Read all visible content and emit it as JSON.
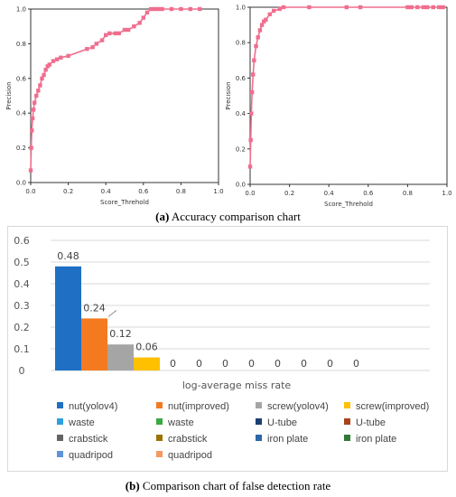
{
  "captions": {
    "a_letter": "(a)",
    "a_text": "Accuracy comparison chart",
    "b_letter": "(b)",
    "b_text": "Comparison chart of false detection rate"
  },
  "chart_data": [
    {
      "type": "line",
      "xlabel": "Score_Threhold",
      "ylabel": "Precision",
      "xlim": [
        0.0,
        1.0
      ],
      "ylim": [
        0.0,
        1.0
      ],
      "xticks": [
        "0.0",
        "0.2",
        "0.4",
        "0.6",
        "0.8",
        "1.0"
      ],
      "yticks": [
        "0.0",
        "0.2",
        "0.4",
        "0.6",
        "0.8",
        "1.0"
      ],
      "color": "#f06e8e",
      "x": [
        0.0,
        0.003,
        0.006,
        0.01,
        0.015,
        0.02,
        0.03,
        0.04,
        0.05,
        0.06,
        0.07,
        0.08,
        0.09,
        0.1,
        0.12,
        0.14,
        0.16,
        0.2,
        0.3,
        0.33,
        0.35,
        0.38,
        0.4,
        0.42,
        0.45,
        0.47,
        0.5,
        0.52,
        0.55,
        0.58,
        0.6,
        0.62,
        0.64,
        0.66,
        0.68,
        0.7,
        0.75,
        0.8,
        0.85,
        0.9
      ],
      "y": [
        0.07,
        0.2,
        0.3,
        0.37,
        0.42,
        0.46,
        0.5,
        0.53,
        0.56,
        0.6,
        0.62,
        0.65,
        0.67,
        0.68,
        0.7,
        0.71,
        0.72,
        0.73,
        0.77,
        0.78,
        0.8,
        0.82,
        0.85,
        0.86,
        0.86,
        0.86,
        0.88,
        0.88,
        0.9,
        0.92,
        0.95,
        0.98,
        1.0,
        1.0,
        1.0,
        1.0,
        1.0,
        1.0,
        1.0,
        1.0
      ]
    },
    {
      "type": "line",
      "xlabel": "Score_Threhold",
      "ylabel": "Precision",
      "xlim": [
        0.0,
        1.0
      ],
      "ylim": [
        0.0,
        1.0
      ],
      "xticks": [
        "0.0",
        "0.2",
        "0.4",
        "0.6",
        "0.8",
        "1.0"
      ],
      "yticks": [
        "0.0",
        "0.2",
        "0.4",
        "0.6",
        "0.8",
        "1.0"
      ],
      "color": "#f06e8e",
      "x": [
        0.0,
        0.003,
        0.006,
        0.01,
        0.015,
        0.02,
        0.03,
        0.04,
        0.05,
        0.06,
        0.07,
        0.08,
        0.1,
        0.12,
        0.15,
        0.17,
        0.3,
        0.49,
        0.56,
        0.8,
        0.82,
        0.85,
        0.88,
        0.9,
        0.93,
        0.96,
        0.98
      ],
      "y": [
        0.1,
        0.25,
        0.4,
        0.52,
        0.62,
        0.7,
        0.78,
        0.83,
        0.87,
        0.9,
        0.92,
        0.93,
        0.96,
        0.98,
        0.99,
        1.0,
        1.0,
        1.0,
        1.0,
        1.0,
        1.0,
        1.0,
        1.0,
        1.0,
        1.0,
        1.0,
        1.0
      ]
    },
    {
      "type": "bar",
      "xlabel": "log-average miss rate",
      "ylim": [
        0,
        0.6
      ],
      "yticks": [
        "0",
        "0.1",
        "0.2",
        "0.3",
        "0.4",
        "0.5",
        "0.6"
      ],
      "series": [
        {
          "name": "nut(yolov4)",
          "value": 0.48,
          "label": "0.48",
          "color": "#1f6fc5"
        },
        {
          "name": "nut(improved)",
          "value": 0.24,
          "label": "0.24",
          "color": "#f47a20"
        },
        {
          "name": "screw(yolov4)",
          "value": 0.12,
          "label": "0.12",
          "color": "#a5a5a5"
        },
        {
          "name": "screw(improved)",
          "value": 0.06,
          "label": "0.06",
          "color": "#ffc000"
        },
        {
          "name": "waste",
          "value": 0,
          "label": "0",
          "color": "#2e9fdc"
        },
        {
          "name": "waste",
          "value": 0,
          "label": "0",
          "color": "#3aa843"
        },
        {
          "name": "U-tube",
          "value": 0,
          "label": "0",
          "color": "#1c3f72"
        },
        {
          "name": "U-tube",
          "value": 0,
          "label": "0",
          "color": "#a8441c"
        },
        {
          "name": "crabstick",
          "value": 0,
          "label": "0",
          "color": "#636363"
        },
        {
          "name": "crabstick",
          "value": 0,
          "label": "0",
          "color": "#9b7200"
        },
        {
          "name": "iron plate",
          "value": 0,
          "label": "0",
          "color": "#2c67a8"
        },
        {
          "name": "iron plate",
          "value": 0,
          "label": "0",
          "color": "#2f7a35"
        },
        {
          "name": "quadripod",
          "value": 0,
          "label": "",
          "color": "#5f94d6"
        },
        {
          "name": "quadripod",
          "value": 0,
          "label": "",
          "color": "#f59a5f"
        }
      ]
    }
  ]
}
